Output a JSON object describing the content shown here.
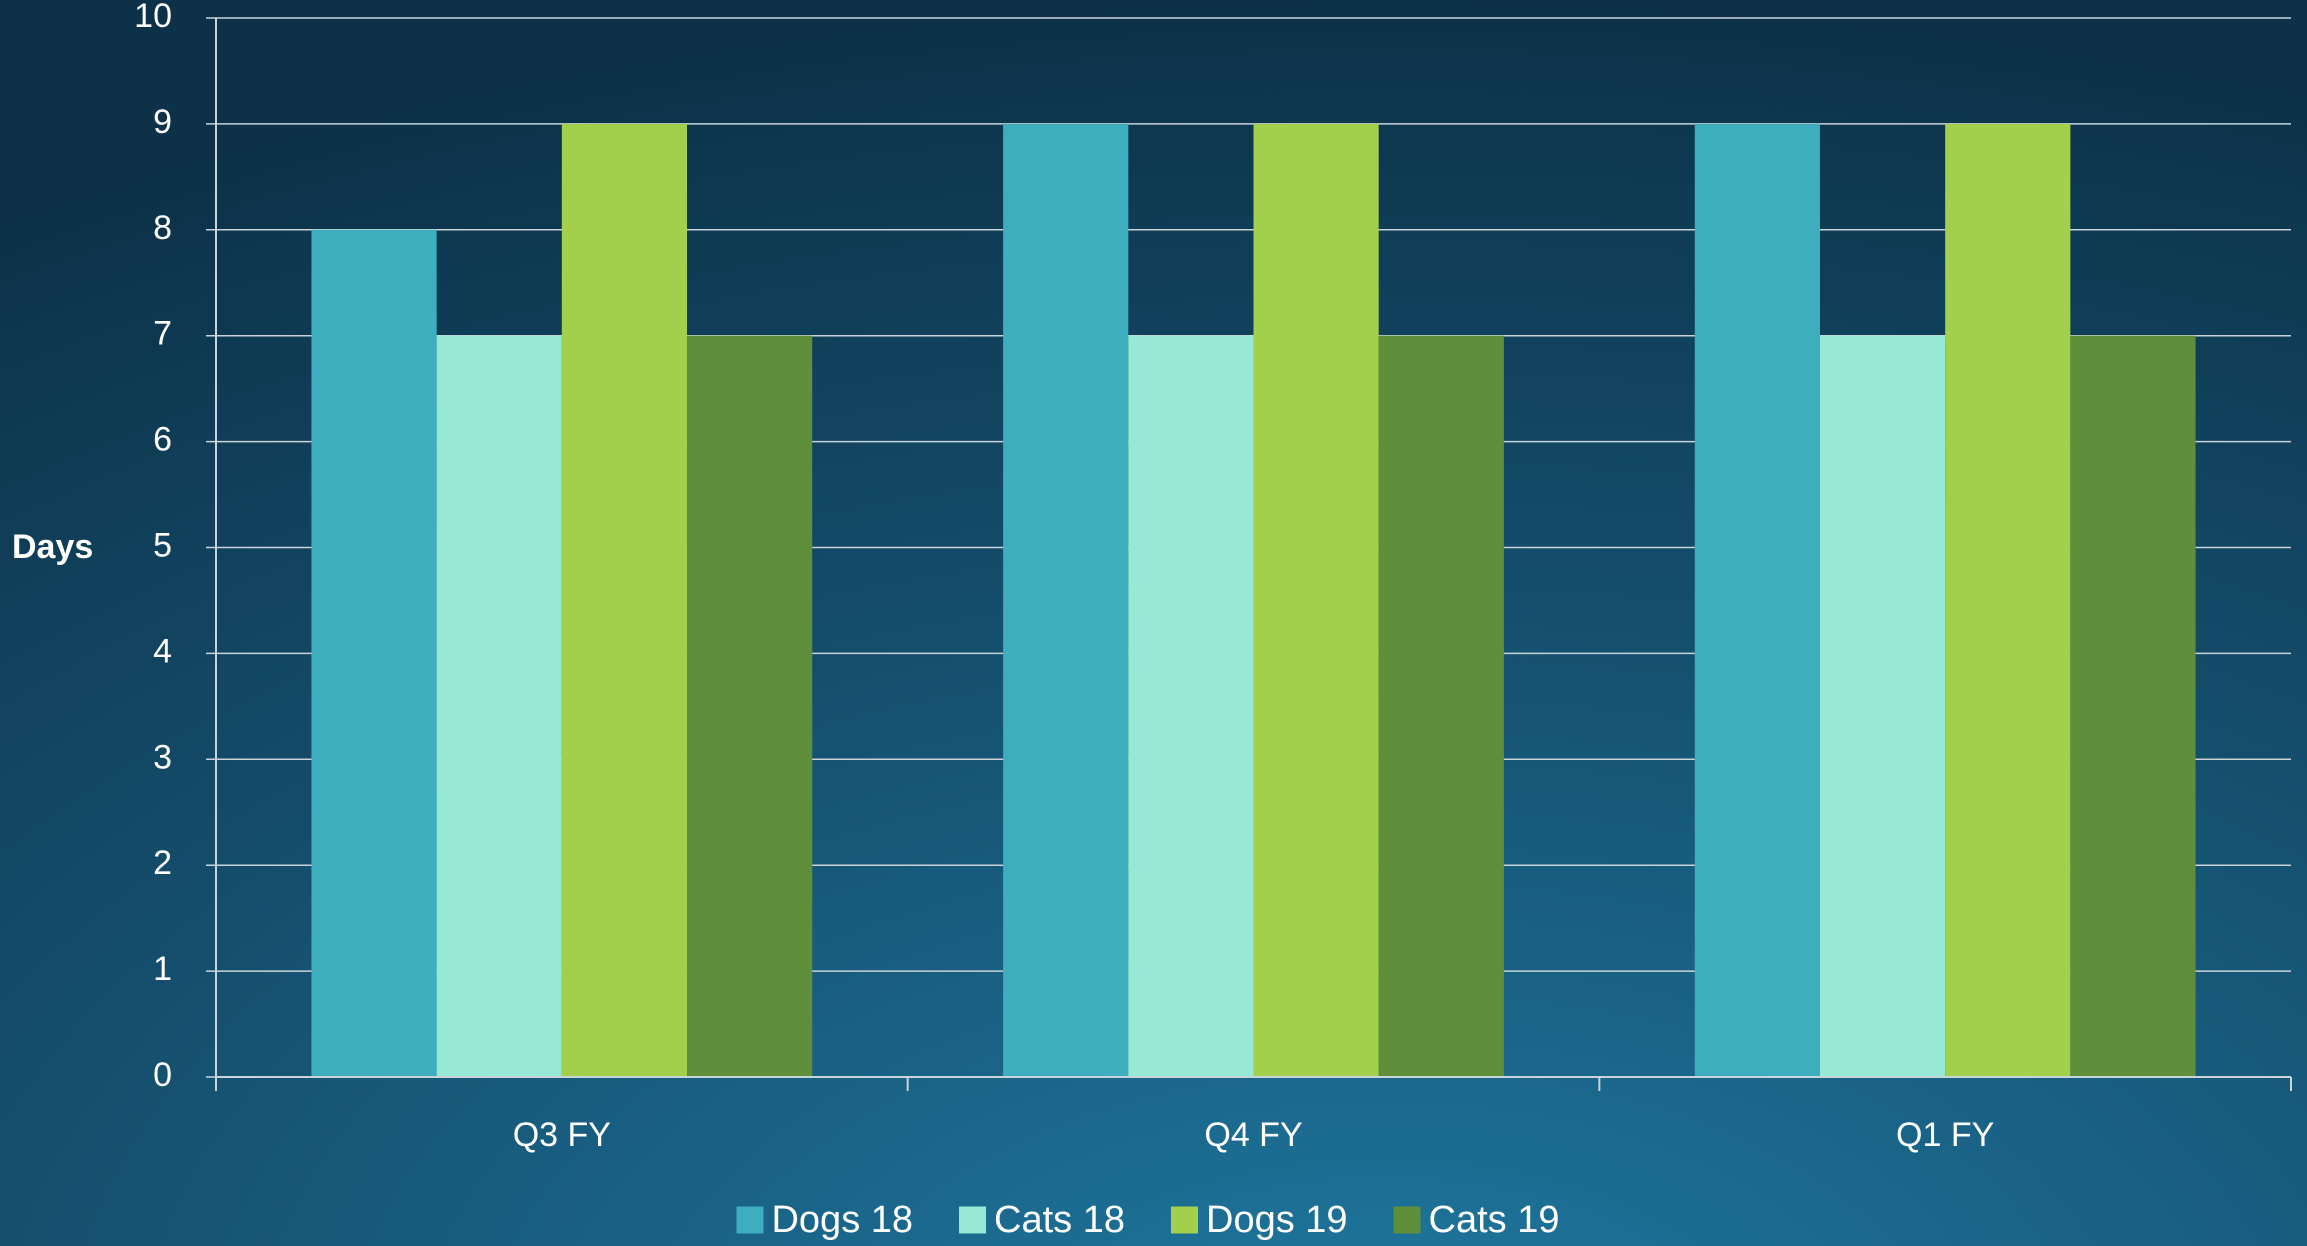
{
  "chart_data": {
    "type": "bar",
    "y_label": "Days",
    "categories": [
      "Q3 FY",
      "Q4 FY",
      "Q1 FY"
    ],
    "series": [
      {
        "name": "Dogs 18",
        "color": "#3eaebf",
        "values": [
          8,
          9,
          9
        ]
      },
      {
        "name": "Cats 18",
        "color": "#98e8d6",
        "values": [
          7,
          7,
          7
        ]
      },
      {
        "name": "Dogs 19",
        "color": "#a2cf4c",
        "values": [
          9,
          9,
          9
        ]
      },
      {
        "name": "Cats 19",
        "color": "#5f8f3b",
        "values": [
          7,
          7,
          7
        ]
      }
    ],
    "ylim": [
      0,
      10
    ],
    "yticks": [
      0,
      1,
      2,
      3,
      4,
      5,
      6,
      7,
      8,
      9,
      10
    ],
    "grid": true,
    "legend": "bottom"
  }
}
